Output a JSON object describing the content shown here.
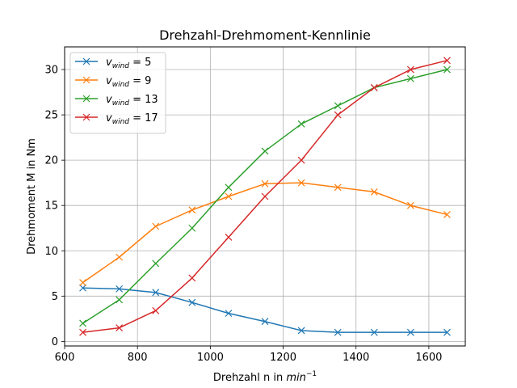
{
  "chart_data": {
    "type": "line",
    "title": "Drehzahl-Drehmoment-Kennlinie",
    "xlabel": "Drehzahl n in",
    "xlabel_unit": "min",
    "xlabel_unit_exp": "−1",
    "ylabel": "Drehmoment M in Nm",
    "xlim": [
      600,
      1700
    ],
    "ylim": [
      -0.5,
      32.5
    ],
    "xticks": [
      600,
      800,
      1000,
      1200,
      1400,
      1600
    ],
    "yticks": [
      0,
      5,
      10,
      15,
      20,
      25,
      30
    ],
    "grid": true,
    "legend_position": "upper-left",
    "marker": "x",
    "x": [
      650,
      750,
      850,
      950,
      1050,
      1150,
      1250,
      1350,
      1450,
      1550,
      1650
    ],
    "series": [
      {
        "name": "v_wind = 5",
        "label_var": "v",
        "label_sub": "wind",
        "label_val": "= 5",
        "color": "#1f77b4",
        "values": [
          5.9,
          5.8,
          5.4,
          4.3,
          3.1,
          2.2,
          1.2,
          1.0,
          1.0,
          1.0,
          1.0
        ]
      },
      {
        "name": "v_wind = 9",
        "label_var": "v",
        "label_sub": "wind",
        "label_val": "= 9",
        "color": "#ff7f0e",
        "values": [
          6.5,
          9.3,
          12.7,
          14.5,
          16.0,
          17.4,
          17.5,
          17.0,
          16.5,
          15.0,
          14.0
        ]
      },
      {
        "name": "v_wind = 13",
        "label_var": "v",
        "label_sub": "wind",
        "label_val": "= 13",
        "color": "#2ca02c",
        "values": [
          2.0,
          4.6,
          8.6,
          12.5,
          17.0,
          21.0,
          24.0,
          26.0,
          28.0,
          29.0,
          30.0
        ]
      },
      {
        "name": "v_wind = 17",
        "label_var": "v",
        "label_sub": "wind",
        "label_val": "= 17",
        "color": "#d62728",
        "values": [
          1.0,
          1.5,
          3.4,
          7.0,
          11.5,
          16.0,
          20.0,
          25.0,
          28.0,
          30.0,
          31.0
        ]
      }
    ]
  }
}
